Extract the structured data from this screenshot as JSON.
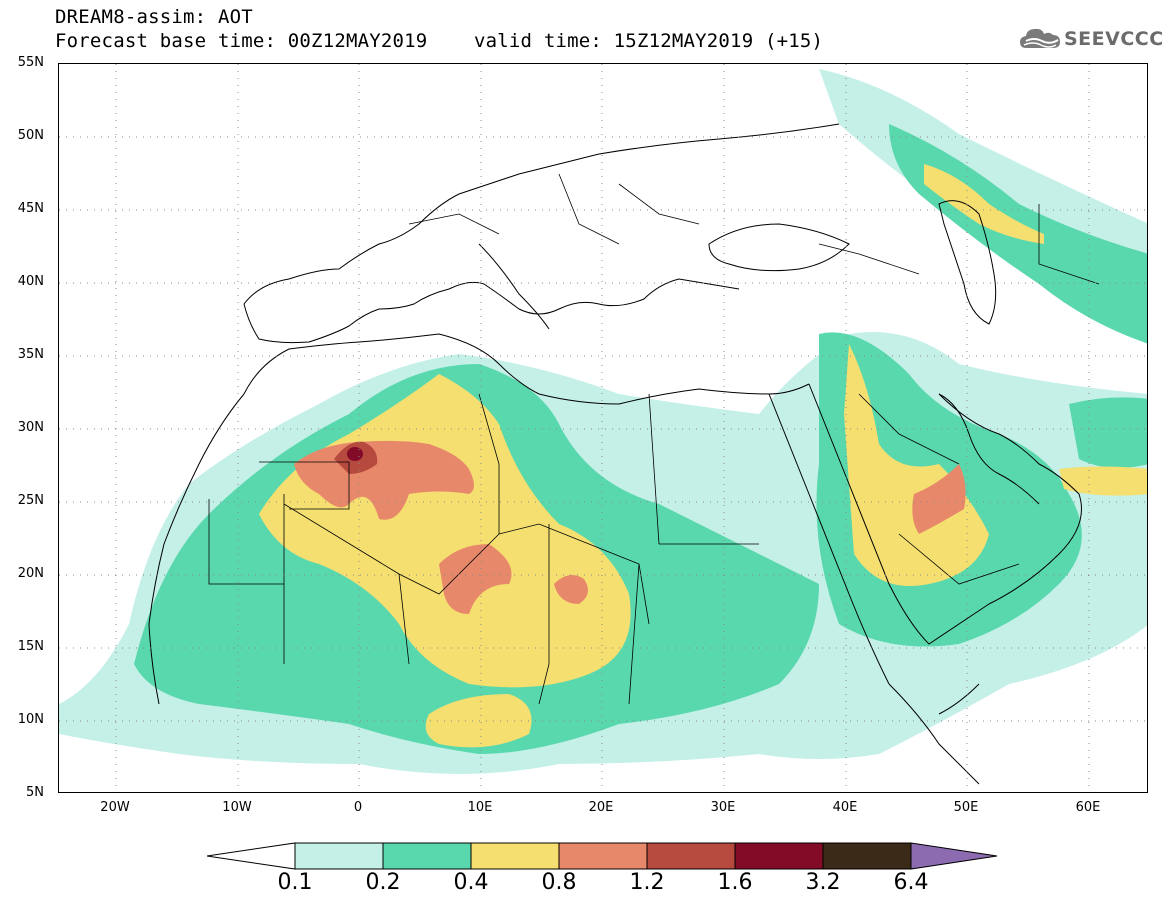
{
  "header": {
    "line1": "DREAM8-assim: AOT",
    "line2": "Forecast base time: 00Z12MAY2019    valid time: 15Z12MAY2019 (+15)",
    "logo_text": "SEEVCCC"
  },
  "map": {
    "region": "North Africa, Middle East and Europe",
    "lat_labels": [
      "55N",
      "50N",
      "45N",
      "40N",
      "35N",
      "30N",
      "25N",
      "20N",
      "15N",
      "10N",
      "5N"
    ],
    "lon_labels": [
      "20W",
      "10W",
      "0",
      "10E",
      "20E",
      "30E",
      "40E",
      "50E",
      "60E"
    ]
  },
  "colorbar": {
    "labels": [
      "0.1",
      "0.2",
      "0.4",
      "0.8",
      "1.2",
      "1.6",
      "3.2",
      "6.4"
    ],
    "colors": [
      "#c4f0e8",
      "#5ad8ad",
      "#f4df70",
      "#e8886a",
      "#b74a3f",
      "#820b27",
      "#3a2a17",
      "#8c6bb0"
    ]
  }
}
